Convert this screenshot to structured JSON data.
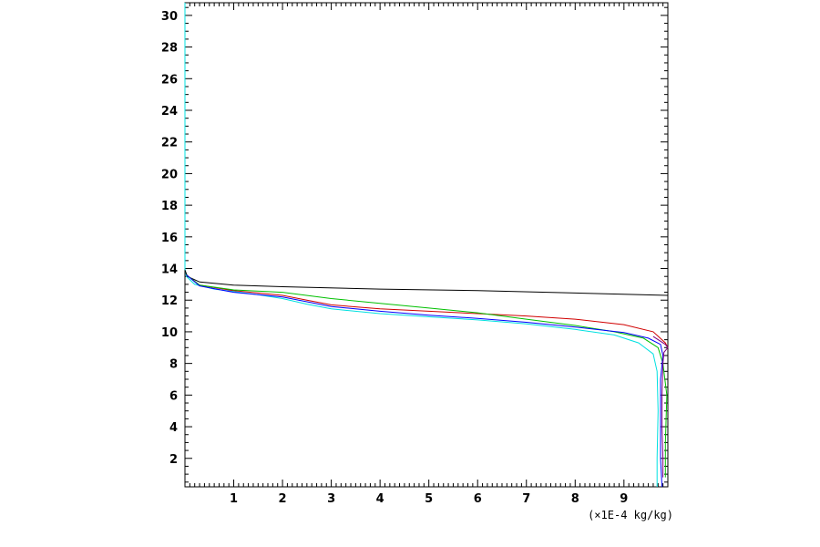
{
  "chart_data": {
    "type": "line",
    "title": "",
    "xlabel": "(×1E-4 kg/kg)",
    "ylabel": "",
    "xlim": [
      0,
      9.9
    ],
    "ylim": [
      0.2,
      30.8
    ],
    "grid": false,
    "legend": "none",
    "x_ticks": [
      1,
      2,
      3,
      4,
      5,
      6,
      7,
      8,
      9
    ],
    "y_ticks": [
      2,
      4,
      6,
      8,
      10,
      12,
      14,
      16,
      18,
      20,
      22,
      24,
      26,
      28,
      30
    ],
    "series": [
      {
        "color": "#00e0e0",
        "points": [
          [
            0,
            30.8
          ],
          [
            0,
            24
          ],
          [
            0,
            18
          ],
          [
            0,
            14
          ],
          [
            0.03,
            13.5
          ],
          [
            0.2,
            13.0
          ],
          [
            0.6,
            12.7
          ],
          [
            1.0,
            12.55
          ],
          [
            1.5,
            12.35
          ],
          [
            2.0,
            12.1
          ],
          [
            2.5,
            11.75
          ],
          [
            3.0,
            11.45
          ],
          [
            4.0,
            11.15
          ],
          [
            5.0,
            10.95
          ],
          [
            6.0,
            10.75
          ],
          [
            7.0,
            10.5
          ],
          [
            8.0,
            10.15
          ],
          [
            8.8,
            9.8
          ],
          [
            9.3,
            9.3
          ],
          [
            9.6,
            8.6
          ],
          [
            9.68,
            7.5
          ],
          [
            9.7,
            5.0
          ],
          [
            9.68,
            2.0
          ],
          [
            9.68,
            0.2
          ]
        ]
      },
      {
        "color": "#000000",
        "points": [
          [
            0,
            13.9
          ],
          [
            0.05,
            13.5
          ],
          [
            0.3,
            13.15
          ],
          [
            1.0,
            12.95
          ],
          [
            2.0,
            12.85
          ],
          [
            4.0,
            12.7
          ],
          [
            6.0,
            12.6
          ],
          [
            8.0,
            12.45
          ],
          [
            9.9,
            12.3
          ]
        ]
      },
      {
        "color": "#d00000",
        "points": [
          [
            0.03,
            13.6
          ],
          [
            0.3,
            12.95
          ],
          [
            1.0,
            12.6
          ],
          [
            2.0,
            12.3
          ],
          [
            2.5,
            12.0
          ],
          [
            3.0,
            11.7
          ],
          [
            4.0,
            11.45
          ],
          [
            5.0,
            11.3
          ],
          [
            6.0,
            11.15
          ],
          [
            7.0,
            11.0
          ],
          [
            8.0,
            10.8
          ],
          [
            9.0,
            10.45
          ],
          [
            9.6,
            10.0
          ],
          [
            9.85,
            9.3
          ],
          [
            9.9,
            9.0
          ]
        ]
      },
      {
        "color": "#00c000",
        "points": [
          [
            0.03,
            13.6
          ],
          [
            0.3,
            12.95
          ],
          [
            1.0,
            12.65
          ],
          [
            2.0,
            12.5
          ],
          [
            3.0,
            12.1
          ],
          [
            4.0,
            11.8
          ],
          [
            5.0,
            11.5
          ],
          [
            6.0,
            11.2
          ],
          [
            7.0,
            10.8
          ],
          [
            8.0,
            10.4
          ],
          [
            8.8,
            10.0
          ],
          [
            9.4,
            9.6
          ],
          [
            9.7,
            9.0
          ],
          [
            9.8,
            8.0
          ],
          [
            9.88,
            6.0
          ],
          [
            9.85,
            3.0
          ],
          [
            9.85,
            0.8
          ]
        ]
      },
      {
        "color": "#0000ff",
        "points": [
          [
            0.03,
            13.6
          ],
          [
            0.3,
            12.9
          ],
          [
            1.0,
            12.5
          ],
          [
            2.0,
            12.2
          ],
          [
            3.0,
            11.6
          ],
          [
            4.0,
            11.3
          ],
          [
            5.0,
            11.05
          ],
          [
            6.0,
            10.85
          ],
          [
            7.0,
            10.6
          ],
          [
            8.0,
            10.3
          ],
          [
            9.0,
            9.95
          ],
          [
            9.5,
            9.6
          ],
          [
            9.75,
            9.2
          ],
          [
            9.8,
            8.5
          ],
          [
            9.75,
            7.0
          ],
          [
            9.75,
            5.0
          ],
          [
            9.75,
            2.0
          ],
          [
            9.78,
            0.2
          ]
        ]
      },
      {
        "color": "#800080",
        "points": [
          [
            9.6,
            9.7
          ],
          [
            9.85,
            9.2
          ],
          [
            9.9,
            9.0
          ],
          [
            9.82,
            8.7
          ],
          [
            9.8,
            8.0
          ],
          [
            9.78,
            6.0
          ],
          [
            9.78,
            4.0
          ],
          [
            9.8,
            2.0
          ],
          [
            9.8,
            0.8
          ]
        ]
      }
    ]
  }
}
